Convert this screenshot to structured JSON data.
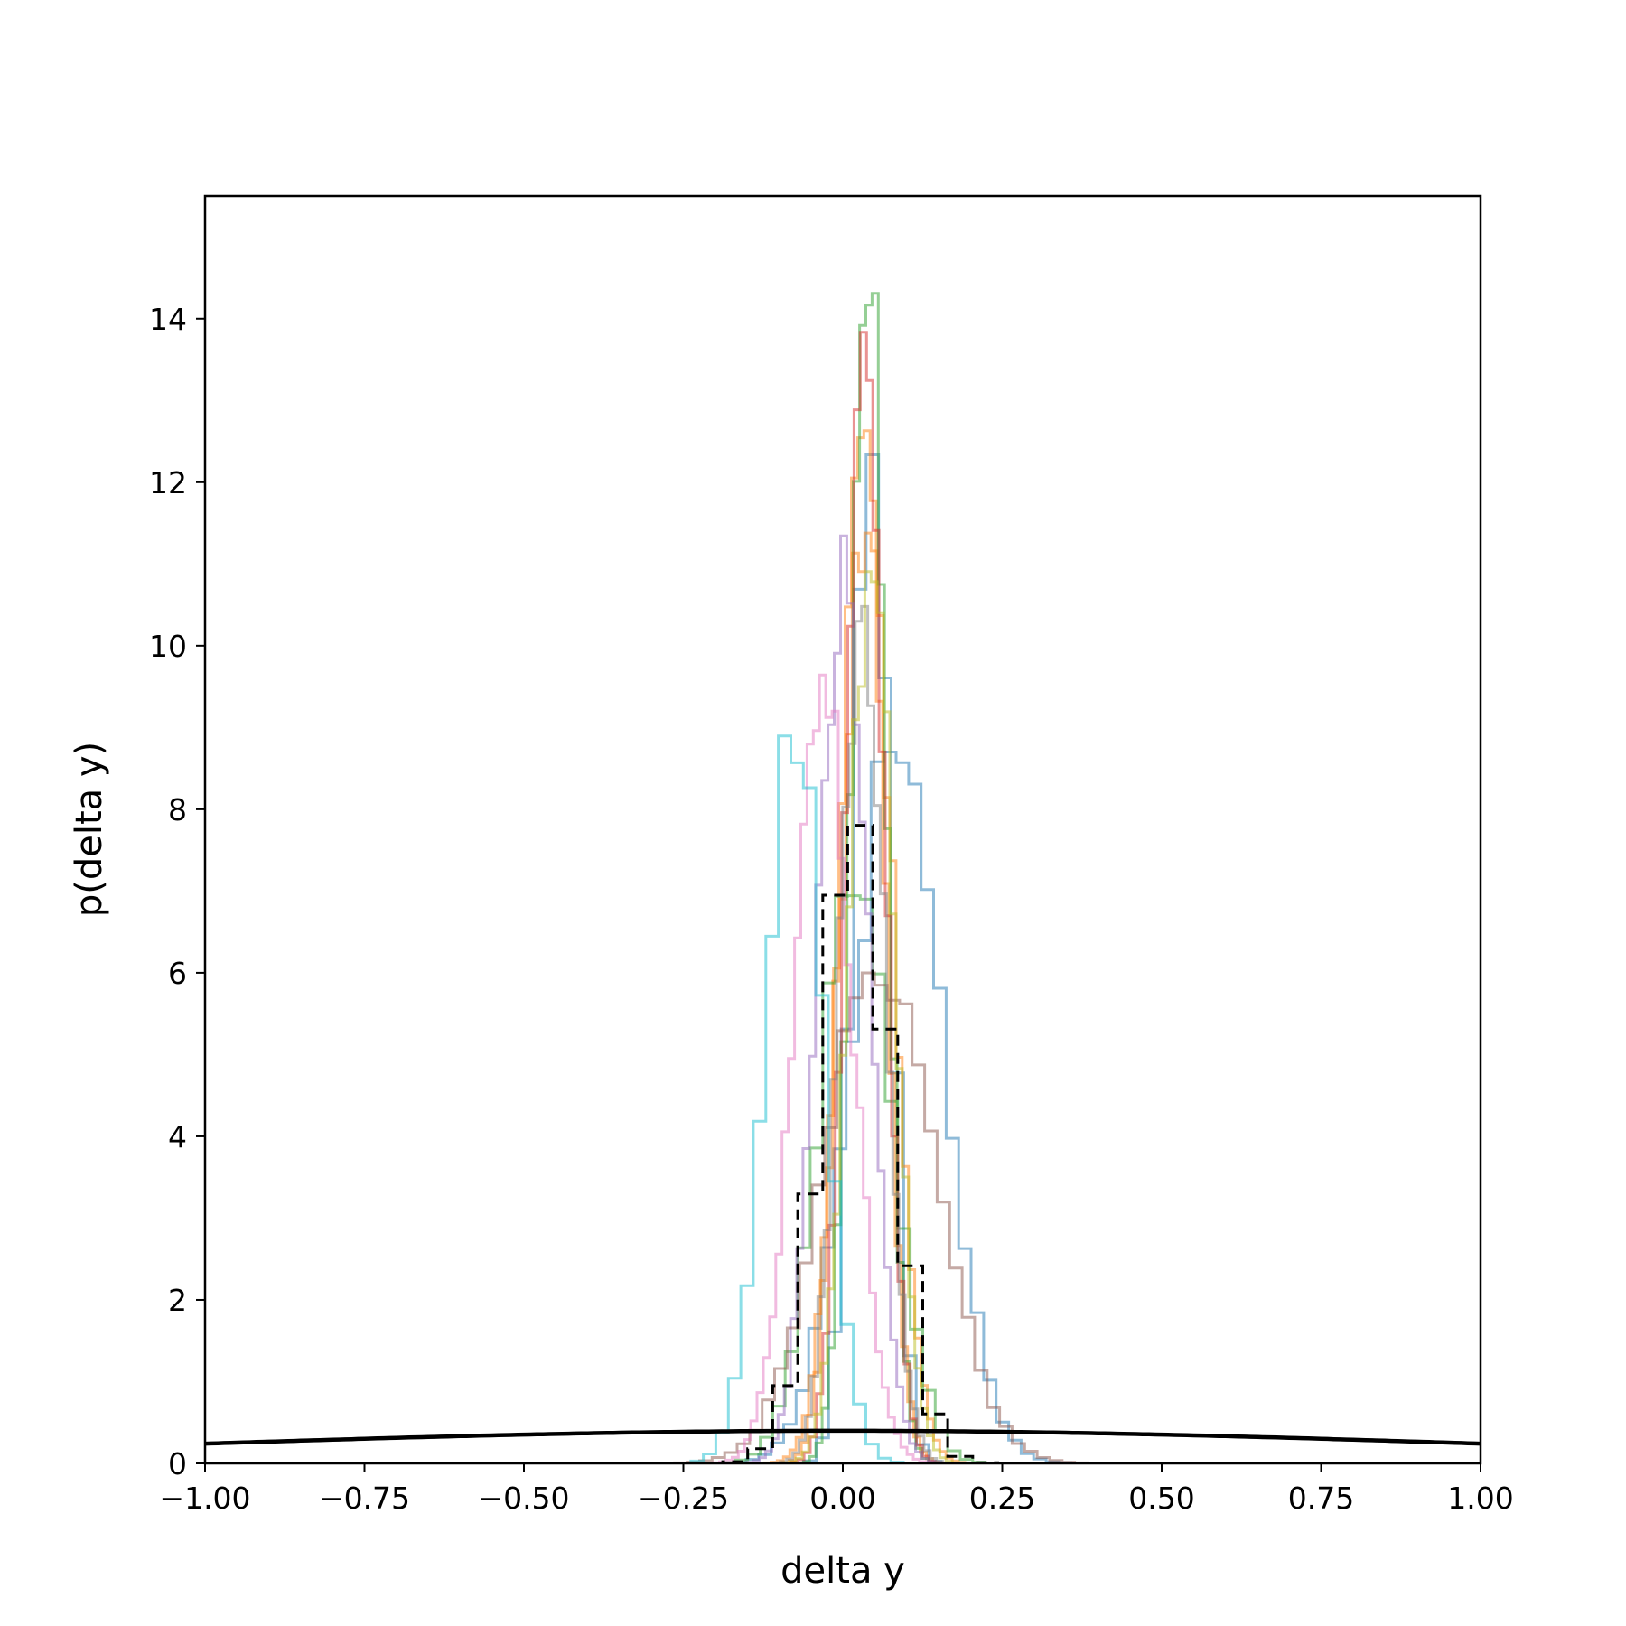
{
  "chart_data": {
    "type": "histogram",
    "xlabel": "delta y",
    "ylabel": "p(delta y)",
    "xlim": [
      -1.0,
      1.0
    ],
    "ylim": [
      0,
      15.5
    ],
    "x_ticks": [
      -1.0,
      -0.75,
      -0.5,
      -0.25,
      0.0,
      0.25,
      0.5,
      0.75,
      1.0
    ],
    "x_tick_labels": [
      "−1.00",
      "−0.75",
      "−0.50",
      "−0.25",
      "0.00",
      "0.25",
      "0.50",
      "0.75",
      "1.00"
    ],
    "y_ticks": [
      0,
      2,
      4,
      6,
      8,
      10,
      12,
      14
    ],
    "y_tick_labels": [
      "0",
      "2",
      "4",
      "6",
      "8",
      "10",
      "12",
      "14"
    ],
    "grid": false,
    "legend": "none",
    "series": [
      {
        "color": "#1f77b4",
        "bin_width": 0.0196,
        "hist": {
          "mean": 0.085,
          "sd": 0.07,
          "peak": 8.9
        }
      },
      {
        "color": "#1f77b4",
        "bin_width": 0.0196,
        "hist": {
          "mean": 0.045,
          "sd": 0.028,
          "peak": 13.3
        }
      },
      {
        "color": "#ff7f0e",
        "bin_width": 0.0098,
        "hist": {
          "mean": 0.038,
          "sd": 0.04,
          "peak": 11.5
        }
      },
      {
        "color": "#ff7f0e",
        "bin_width": 0.0098,
        "hist": {
          "mean": 0.03,
          "sd": 0.032,
          "peak": 13.1
        }
      },
      {
        "color": "#2ca02c",
        "bin_width": 0.0098,
        "hist": {
          "mean": 0.04,
          "sd": 0.027,
          "peak": 14.7
        }
      },
      {
        "color": "#2ca02c",
        "bin_width": 0.0196,
        "hist": {
          "mean": 0.02,
          "sd": 0.055,
          "peak": 7.5
        }
      },
      {
        "color": "#d62728",
        "bin_width": 0.0098,
        "hist": {
          "mean": 0.035,
          "sd": 0.03,
          "peak": 13.4
        }
      },
      {
        "color": "#9467bd",
        "bin_width": 0.0098,
        "hist": {
          "mean": 0.0,
          "sd": 0.04,
          "peak": 10.7
        }
      },
      {
        "color": "#8c564b",
        "bin_width": 0.0196,
        "hist": {
          "mean": 0.06,
          "sd": 0.085,
          "peak": 6.3
        }
      },
      {
        "color": "#e377c2",
        "bin_width": 0.0098,
        "hist": {
          "mean": -0.03,
          "sd": 0.045,
          "peak": 9.3
        }
      },
      {
        "color": "#7f7f7f",
        "bin_width": 0.0098,
        "hist": {
          "mean": 0.03,
          "sd": 0.035,
          "peak": 10.4
        }
      },
      {
        "color": "#bcbd22",
        "bin_width": 0.0098,
        "hist": {
          "mean": 0.045,
          "sd": 0.035,
          "peak": 11.0
        }
      },
      {
        "color": "#17becf",
        "bin_width": 0.0196,
        "hist": {
          "mean": -0.075,
          "sd": 0.045,
          "peak": 9.1
        }
      },
      {
        "color": "#000000",
        "bin_width": 0.0392,
        "dashed": true,
        "hist": {
          "mean": 0.02,
          "sd": 0.055,
          "peak": 7.7
        }
      }
    ],
    "prior_curve": {
      "color": "#000000",
      "type": "normal_pdf",
      "mean": 0.0,
      "sd": 1.0
    }
  }
}
